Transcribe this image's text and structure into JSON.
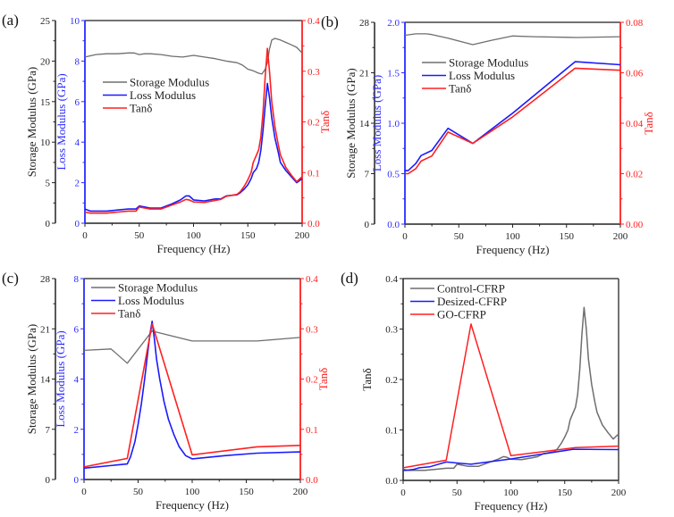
{
  "chart_data": [
    {
      "panel_label": "(a)",
      "type": "line",
      "xlabel": "Frequency (Hz)",
      "xlim": [
        0,
        200
      ],
      "xticks": [
        0,
        50,
        100,
        150,
        200
      ],
      "axes": {
        "storage": {
          "label": "Storage Modulus (GPa)",
          "lim": [
            0,
            25
          ],
          "ticks": [
            0,
            5,
            10,
            15,
            20,
            25
          ],
          "color": "#222222"
        },
        "loss": {
          "label": "Loss Modulus (GPa)",
          "lim": [
            0,
            10
          ],
          "ticks": [
            0,
            2,
            4,
            6,
            8,
            10
          ],
          "color": "#2b2bff"
        },
        "tan": {
          "label": "Tanδ",
          "lim": [
            0,
            0.4
          ],
          "ticks": [
            "0.0",
            "0.1",
            "0.2",
            "0.3",
            "0.4"
          ],
          "color": "#ff2020"
        }
      },
      "legend": [
        "Storage Modulus",
        "Loss Modulus",
        "Tanδ"
      ],
      "legend_position": "center-left",
      "series": [
        {
          "name": "Storage Modulus",
          "axis": "storage",
          "color": "#6e6e6e",
          "x": [
            0,
            10,
            20,
            30,
            40,
            45,
            50,
            55,
            60,
            70,
            80,
            90,
            100,
            110,
            120,
            130,
            140,
            145,
            150,
            155,
            160,
            163,
            166,
            168,
            170,
            172,
            175,
            180,
            185,
            190,
            195,
            200
          ],
          "y": [
            20.5,
            20.8,
            20.9,
            20.9,
            21.0,
            21.0,
            20.8,
            20.9,
            20.9,
            20.8,
            20.6,
            20.5,
            20.7,
            20.5,
            20.3,
            20.0,
            19.8,
            19.5,
            19.0,
            18.8,
            18.5,
            18.4,
            19.0,
            19.8,
            21.5,
            22.6,
            22.8,
            22.6,
            22.3,
            22.0,
            21.7,
            21.0
          ]
        },
        {
          "name": "Loss Modulus",
          "axis": "loss",
          "color": "#1a1aff",
          "x": [
            0,
            5,
            10,
            20,
            30,
            40,
            47,
            50,
            55,
            60,
            70,
            80,
            88,
            93,
            96,
            100,
            110,
            120,
            125,
            130,
            140,
            143,
            147,
            150,
            153,
            155,
            158,
            160,
            162,
            164,
            166,
            168,
            170,
            172,
            175,
            178,
            180,
            185,
            190,
            195,
            200
          ],
          "y": [
            0.7,
            0.6,
            0.6,
            0.6,
            0.65,
            0.7,
            0.7,
            0.85,
            0.8,
            0.75,
            0.75,
            0.95,
            1.15,
            1.35,
            1.35,
            1.15,
            1.1,
            1.2,
            1.2,
            1.35,
            1.4,
            1.5,
            1.7,
            1.9,
            2.2,
            2.5,
            2.7,
            3.0,
            3.6,
            4.6,
            5.8,
            6.9,
            6.2,
            5.2,
            4.2,
            3.5,
            3.0,
            2.6,
            2.3,
            2.0,
            2.2
          ]
        },
        {
          "name": "Tanδ",
          "axis": "tan",
          "color": "#ff2020",
          "x": [
            0,
            5,
            10,
            20,
            30,
            40,
            47,
            50,
            55,
            60,
            70,
            80,
            88,
            93,
            96,
            100,
            110,
            120,
            125,
            130,
            140,
            143,
            147,
            150,
            153,
            155,
            158,
            160,
            162,
            164,
            166,
            168,
            170,
            172,
            175,
            178,
            180,
            185,
            190,
            195,
            200
          ],
          "y": [
            0.022,
            0.02,
            0.02,
            0.02,
            0.022,
            0.024,
            0.024,
            0.032,
            0.03,
            0.028,
            0.028,
            0.036,
            0.042,
            0.047,
            0.046,
            0.042,
            0.041,
            0.045,
            0.047,
            0.053,
            0.057,
            0.062,
            0.074,
            0.086,
            0.1,
            0.12,
            0.135,
            0.145,
            0.17,
            0.22,
            0.29,
            0.345,
            0.3,
            0.24,
            0.19,
            0.155,
            0.135,
            0.11,
            0.095,
            0.082,
            0.092
          ]
        }
      ]
    },
    {
      "panel_label": "(b)",
      "type": "line",
      "xlabel": "Frequency (Hz)",
      "xlim": [
        0,
        200
      ],
      "xticks": [
        0,
        50,
        100,
        150,
        200
      ],
      "axes": {
        "storage": {
          "label": "Storage Modulus (GPa)",
          "lim": [
            0,
            28
          ],
          "ticks": [
            0,
            7,
            14,
            21,
            28
          ],
          "color": "#222222"
        },
        "loss": {
          "label": "Loss Modulus (GPa)",
          "lim": [
            0,
            2
          ],
          "ticks": [
            "0.0",
            "0.5",
            "1.0",
            "1.5",
            "2.0"
          ],
          "color": "#2b2bff"
        },
        "tan": {
          "label": "Tanδ",
          "lim": [
            0,
            0.08
          ],
          "ticks": [
            "0.00",
            "0.02",
            "0.04",
            "0.06",
            "0.08"
          ],
          "color": "#ff2020"
        }
      },
      "legend": [
        "Storage Modulus",
        "Loss Modulus",
        "Tanδ"
      ],
      "legend_position": "upper-left",
      "series": [
        {
          "name": "Storage Modulus",
          "axis": "storage",
          "color": "#6e6e6e",
          "x": [
            0,
            10,
            20,
            25,
            40,
            63,
            80,
            100,
            120,
            160,
            200
          ],
          "y": [
            26.2,
            26.4,
            26.4,
            26.3,
            25.8,
            24.9,
            25.5,
            26.1,
            26.0,
            25.9,
            26.0
          ]
        },
        {
          "name": "Loss Modulus",
          "axis": "loss",
          "color": "#1a1aff",
          "x": [
            0,
            3,
            10,
            15,
            25,
            40,
            63,
            100,
            158,
            200
          ],
          "y": [
            0.53,
            0.53,
            0.6,
            0.68,
            0.73,
            0.95,
            0.8,
            1.1,
            1.61,
            1.58
          ]
        },
        {
          "name": "Tanδ",
          "axis": "tan",
          "color": "#ff2020",
          "x": [
            0,
            3,
            10,
            15,
            25,
            40,
            63,
            100,
            158,
            200
          ],
          "y": [
            0.02,
            0.02,
            0.022,
            0.025,
            0.027,
            0.0365,
            0.032,
            0.0425,
            0.0618,
            0.061
          ]
        }
      ]
    },
    {
      "panel_label": "(c)",
      "type": "line",
      "xlabel": "Frequency (Hz)",
      "xlim": [
        0,
        200
      ],
      "xticks": [
        0,
        50,
        100,
        150,
        200
      ],
      "axes": {
        "storage": {
          "label": "Storage Modulus (GPa)",
          "lim": [
            0,
            28
          ],
          "ticks": [
            0,
            7,
            14,
            21,
            28
          ],
          "color": "#222222"
        },
        "loss": {
          "label": "Loss Modulus (GPa)",
          "lim": [
            0,
            8
          ],
          "ticks": [
            0,
            2,
            4,
            6,
            8
          ],
          "color": "#2b2bff"
        },
        "tan": {
          "label": "Tanδ",
          "lim": [
            0,
            0.4
          ],
          "ticks": [
            "0.0",
            "0.1",
            "0.2",
            "0.3",
            "0.4"
          ],
          "color": "#ff2020"
        }
      },
      "legend": [
        "Storage Modulus",
        "Loss Modulus",
        "Tanδ"
      ],
      "legend_position": "upper-left",
      "series": [
        {
          "name": "Storage Modulus",
          "axis": "storage",
          "color": "#6e6e6e",
          "x": [
            0,
            25,
            40,
            63,
            100,
            160,
            200
          ],
          "y": [
            18.0,
            18.2,
            16.2,
            20.7,
            19.3,
            19.3,
            19.8
          ]
        },
        {
          "name": "Loss Modulus",
          "axis": "loss",
          "color": "#1a1aff",
          "x": [
            0,
            40,
            43,
            47,
            50,
            53,
            56,
            59,
            61,
            63,
            65,
            67,
            70,
            74,
            78,
            83,
            88,
            94,
            100,
            130,
            160,
            200
          ],
          "y": [
            0.45,
            0.62,
            0.9,
            1.5,
            2.2,
            3.0,
            4.0,
            5.1,
            5.8,
            6.3,
            5.6,
            4.8,
            4.0,
            3.1,
            2.4,
            1.8,
            1.3,
            0.95,
            0.82,
            0.95,
            1.05,
            1.1
          ]
        },
        {
          "name": "Tanδ",
          "axis": "tan",
          "color": "#ff2020",
          "x": [
            0,
            40,
            63,
            100,
            160,
            200
          ],
          "y": [
            0.025,
            0.042,
            0.31,
            0.049,
            0.065,
            0.068
          ]
        }
      ]
    },
    {
      "panel_label": "(d)",
      "type": "line",
      "xlabel": "Frequency (Hz)",
      "ylabel": "Tanδ",
      "xlim": [
        0,
        200
      ],
      "ylim": [
        0,
        0.4
      ],
      "xticks": [
        0,
        50,
        100,
        150,
        200
      ],
      "yticks": [
        "0.0",
        "0.1",
        "0.2",
        "0.3",
        "0.4"
      ],
      "legend": [
        "Control-CFRP",
        "Desized-CFRP",
        "GO-CFRP"
      ],
      "legend_position": "upper-left",
      "series": [
        {
          "name": "Control-CFRP",
          "color": "#6e6e6e",
          "x": [
            0,
            5,
            10,
            20,
            30,
            40,
            47,
            50,
            55,
            60,
            70,
            80,
            88,
            93,
            96,
            100,
            110,
            120,
            125,
            130,
            140,
            143,
            147,
            150,
            153,
            155,
            158,
            160,
            162,
            164,
            166,
            168,
            170,
            172,
            175,
            178,
            180,
            185,
            190,
            195,
            200
          ],
          "y": [
            0.022,
            0.02,
            0.02,
            0.02,
            0.022,
            0.024,
            0.024,
            0.032,
            0.03,
            0.028,
            0.028,
            0.036,
            0.042,
            0.047,
            0.046,
            0.042,
            0.041,
            0.045,
            0.047,
            0.053,
            0.057,
            0.062,
            0.074,
            0.086,
            0.1,
            0.12,
            0.135,
            0.145,
            0.17,
            0.22,
            0.29,
            0.343,
            0.3,
            0.24,
            0.19,
            0.155,
            0.135,
            0.11,
            0.095,
            0.082,
            0.092
          ]
        },
        {
          "name": "Desized-CFRP",
          "color": "#1a1aff",
          "x": [
            0,
            3,
            10,
            15,
            25,
            40,
            63,
            100,
            158,
            200
          ],
          "y": [
            0.02,
            0.02,
            0.022,
            0.025,
            0.027,
            0.0365,
            0.032,
            0.0425,
            0.0618,
            0.061
          ]
        },
        {
          "name": "GO-CFRP",
          "color": "#ff2020",
          "x": [
            0,
            40,
            63,
            100,
            160,
            200
          ],
          "y": [
            0.025,
            0.04,
            0.31,
            0.049,
            0.065,
            0.068
          ]
        }
      ]
    }
  ]
}
